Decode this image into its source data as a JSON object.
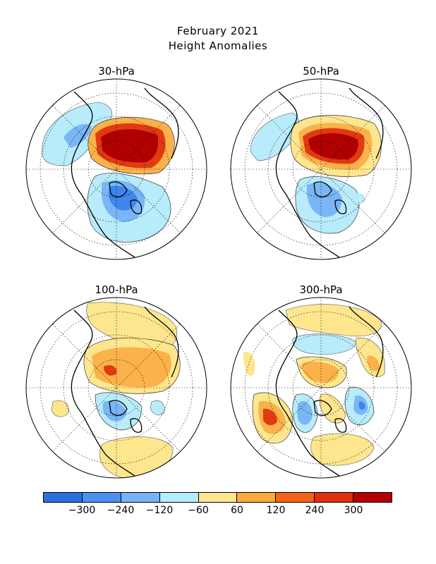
{
  "title": "February 2021",
  "subtitle": "Height Anomalies",
  "panels": [
    {
      "label": "30-hPa"
    },
    {
      "label": "50-hPa"
    },
    {
      "label": "100-hPa"
    },
    {
      "label": "300-hPa"
    }
  ],
  "colorbar": {
    "colors": [
      "#2a6fe0",
      "#4b90f0",
      "#77b4f6",
      "#b2eefb",
      "#ffffff",
      "#fde68e",
      "#fba93a",
      "#f36419",
      "#e22d0f",
      "#b30000"
    ],
    "ticks": [
      "−300",
      "−240",
      "−120",
      "−60",
      "60",
      "120",
      "240",
      "300"
    ]
  },
  "colors": {
    "dark_red": "#b00000",
    "red": "#e23a10",
    "orange": "#f68a22",
    "light_orange": "#fbb24a",
    "yellow": "#fde68e",
    "light_blue": "#b8ecfb",
    "blue": "#7ab6f6",
    "dark_blue": "#3d86ec"
  }
}
